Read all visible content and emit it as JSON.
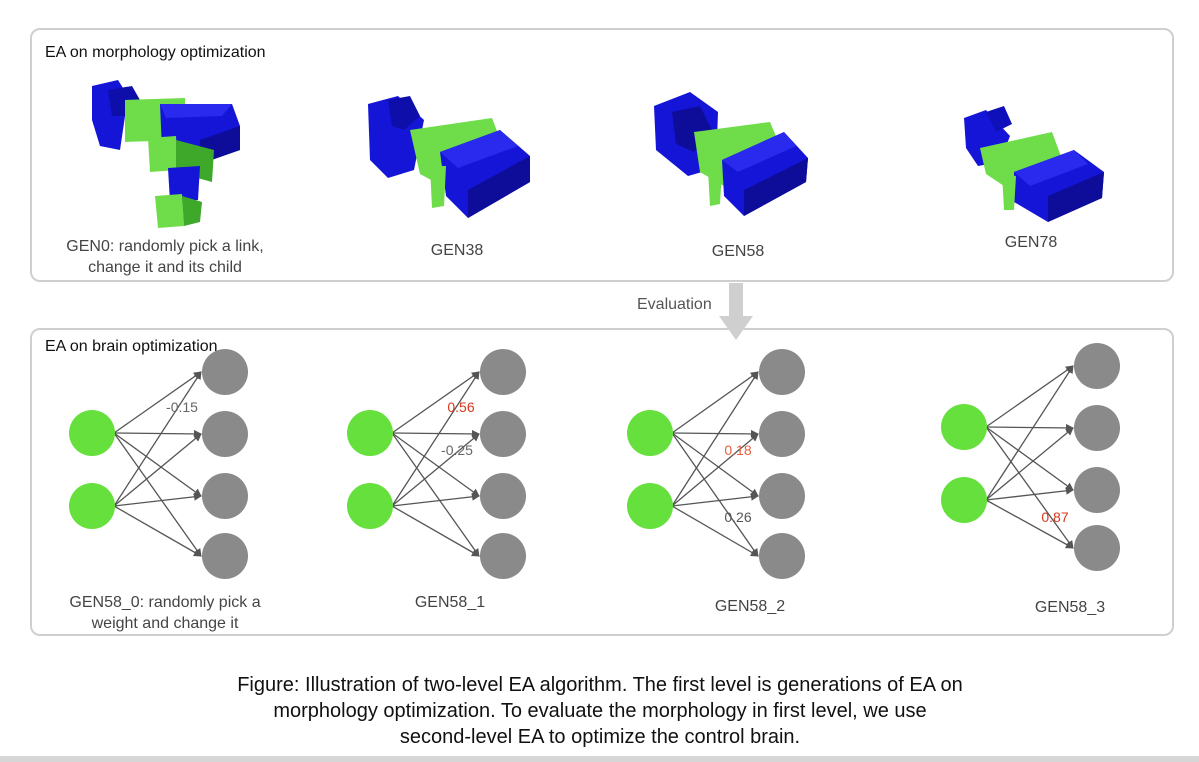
{
  "top_panel": {
    "title": "EA on morphology optimization",
    "generations": [
      {
        "caption_line1": "GEN0: randomly pick a link,",
        "caption_line2": "change it and its child"
      },
      {
        "caption_line1": "GEN38",
        "caption_line2": ""
      },
      {
        "caption_line1": "GEN58",
        "caption_line2": ""
      },
      {
        "caption_line1": "GEN78",
        "caption_line2": ""
      }
    ]
  },
  "evaluation_label": "Evaluation",
  "bottom_panel": {
    "title": "EA on brain optimization",
    "networks": [
      {
        "caption_line1": "GEN58_0: randomly pick a",
        "caption_line2": "weight and change it",
        "weight_label": "-0.15",
        "weight_color": "#666666"
      },
      {
        "caption_line1": "GEN58_1",
        "caption_line2": "",
        "weight_label": "0.56",
        "weight_label_2": "-0.25",
        "weight_color": "#d9381e",
        "weight_color_2": "#666666"
      },
      {
        "caption_line1": "GEN58_2",
        "caption_line2": "",
        "weight_label": "0.18",
        "weight_label_2": "0.26",
        "weight_color": "#e8603c",
        "weight_color_2": "#555555"
      },
      {
        "caption_line1": "GEN58_3",
        "caption_line2": "",
        "weight_label": "0.87",
        "weight_color": "#d9381e"
      }
    ]
  },
  "figure_caption": {
    "line1": "Figure: Illustration of two-level EA algorithm. The first level is generations of EA on",
    "line2": "morphology optimization. To evaluate the morphology in first level, we use",
    "line3": "second-level EA to optimize the control brain."
  },
  "colors": {
    "robot_blue": "#1515d8",
    "robot_green": "#6fdc4a",
    "input_node": "#66e03c",
    "output_node": "#8a8a8a",
    "edge": "#555555",
    "panel_border": "#cfcfcf"
  }
}
